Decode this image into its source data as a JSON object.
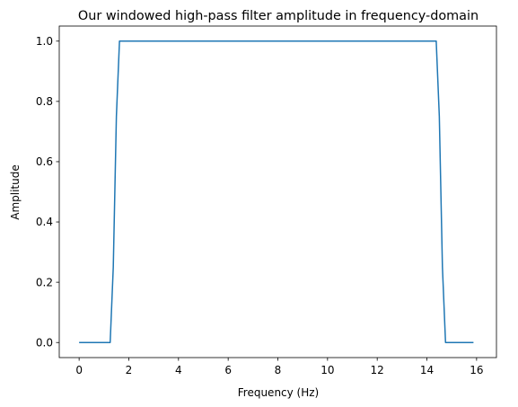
{
  "chart_data": {
    "type": "line",
    "title": "Our windowed high-pass filter amplitude in frequency-domain",
    "xlabel": "Frequency (Hz)",
    "ylabel": "Amplitude",
    "xlim": [
      -0.8,
      16.8
    ],
    "ylim": [
      -0.05,
      1.05
    ],
    "xticks": [
      0,
      2,
      4,
      6,
      8,
      10,
      12,
      14,
      16
    ],
    "yticks": [
      0.0,
      0.2,
      0.4,
      0.6,
      0.8,
      1.0
    ],
    "xtick_labels": [
      "0",
      "2",
      "4",
      "6",
      "8",
      "10",
      "12",
      "14",
      "16"
    ],
    "ytick_labels": [
      "0.0",
      "0.2",
      "0.4",
      "0.6",
      "0.8",
      "1.0"
    ],
    "grid": false,
    "series": [
      {
        "color": "#1f77b4",
        "x": [
          0.0,
          1.25,
          1.375,
          1.5,
          1.625,
          14.375,
          14.5,
          14.625,
          14.75,
          15.875
        ],
        "y": [
          0.0,
          0.0,
          0.25,
          0.75,
          1.0,
          1.0,
          0.75,
          0.25,
          0.0,
          0.0
        ]
      }
    ]
  }
}
